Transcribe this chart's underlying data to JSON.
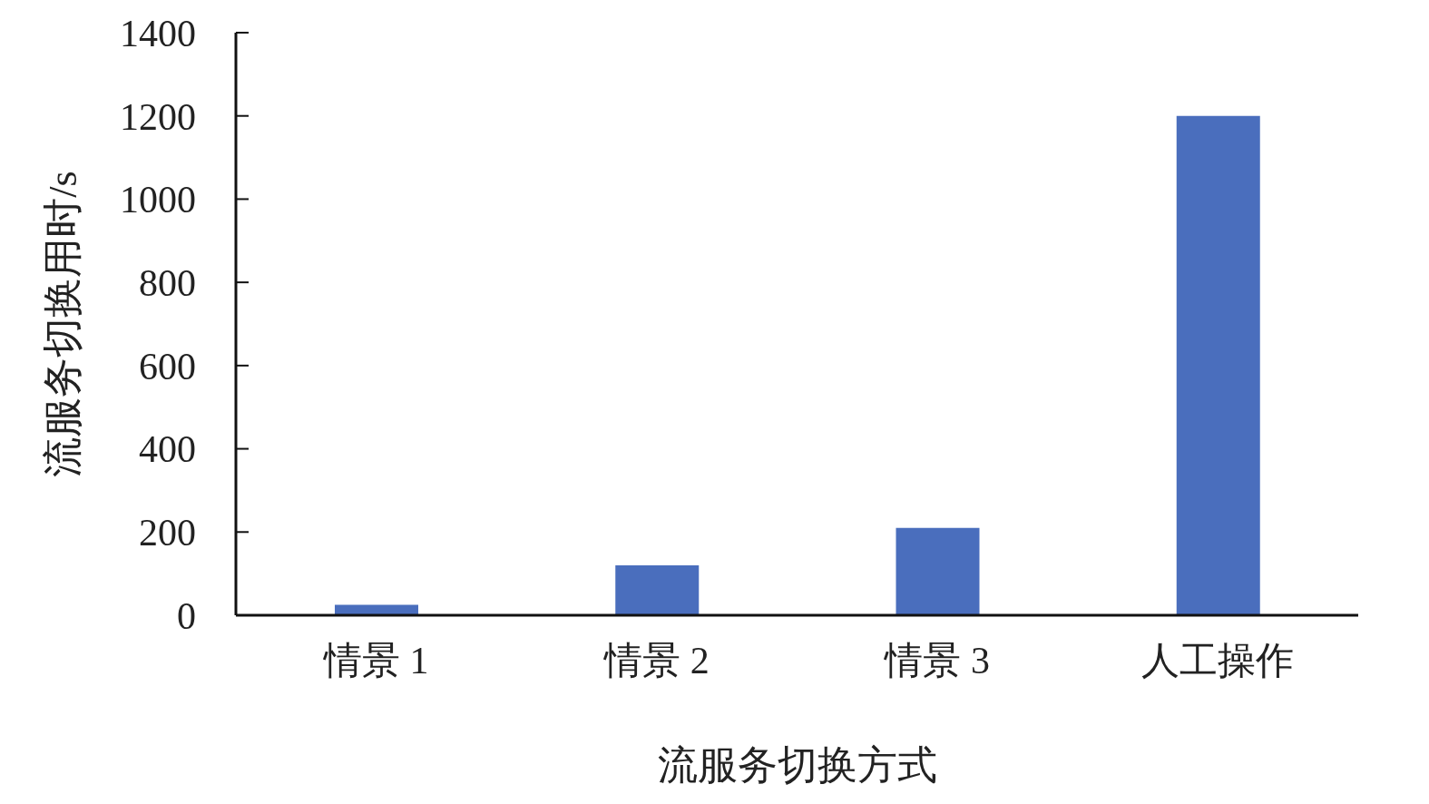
{
  "chart_data": {
    "type": "bar",
    "xlabel": "流服务切换方式",
    "ylabel": "流服务切换用时/s",
    "categories": [
      "情景 1",
      "情景 2",
      "情景 3",
      "人工操作"
    ],
    "values": [
      25,
      120,
      210,
      1200
    ],
    "color": "#4a6ebd",
    "ylim": [
      0,
      1400
    ],
    "yticks": [
      0,
      200,
      400,
      600,
      800,
      1000,
      1200,
      1400
    ],
    "grid": false
  }
}
